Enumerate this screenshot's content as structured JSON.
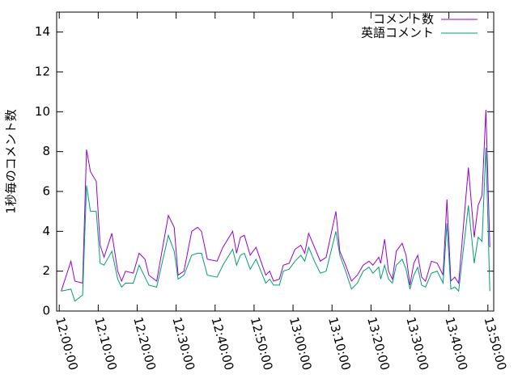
{
  "chart_data": {
    "type": "line",
    "ylabel": "1秒毎のコメント数",
    "x": [
      "12:00:30",
      "12:03:00",
      "12:04:00",
      "12:06:00",
      "12:07:00",
      "12:08:00",
      "12:09:30",
      "12:10:30",
      "12:11:30",
      "12:13:30",
      "12:15:00",
      "12:16:00",
      "12:17:00",
      "12:19:00",
      "12:20:30",
      "12:22:00",
      "12:23:00",
      "12:25:00",
      "12:28:00",
      "12:29:30",
      "12:30:30",
      "12:32:00",
      "12:34:00",
      "12:35:30",
      "12:36:30",
      "12:38:00",
      "12:40:30",
      "12:42:00",
      "12:44:30",
      "12:45:30",
      "12:46:30",
      "12:47:30",
      "12:49:00",
      "12:50:30",
      "12:53:00",
      "12:54:00",
      "12:55:00",
      "12:56:30",
      "12:57:30",
      "12:59:00",
      "13:00:30",
      "13:02:00",
      "13:03:00",
      "13:04:00",
      "13:05:30",
      "13:07:00",
      "13:08:30",
      "13:11:00",
      "13:12:00",
      "13:13:30",
      "13:15:00",
      "13:16:30",
      "13:18:00",
      "13:19:30",
      "13:20:30",
      "13:22:00",
      "13:22:30",
      "13:23:30",
      "13:24:30",
      "13:25:30",
      "13:26:30",
      "13:28:00",
      "13:29:00",
      "13:30:00",
      "13:31:00",
      "13:32:00",
      "13:33:00",
      "13:34:00",
      "13:35:30",
      "13:37:00",
      "13:38:30",
      "13:39:30",
      "13:40:30",
      "13:41:30",
      "13:42:30",
      "13:45:00",
      "13:46:30",
      "13:47:30",
      "13:48:30",
      "13:49:30",
      "13:50:30"
    ],
    "series": [
      {
        "name": "コメント数",
        "color": "#9400d3",
        "values": [
          1.0,
          2.5,
          1.5,
          1.4,
          8.1,
          7.0,
          6.5,
          3.3,
          2.7,
          3.9,
          2.0,
          1.5,
          2.0,
          1.9,
          2.9,
          2.6,
          1.8,
          1.5,
          4.8,
          4.2,
          1.8,
          2.0,
          4.0,
          4.2,
          4.0,
          2.6,
          2.5,
          3.2,
          4.0,
          2.9,
          3.7,
          3.8,
          2.8,
          3.2,
          1.8,
          2.0,
          1.5,
          1.6,
          2.3,
          2.4,
          3.1,
          3.3,
          2.9,
          3.9,
          3.2,
          2.5,
          2.7,
          5.0,
          3.0,
          2.3,
          1.5,
          1.8,
          2.3,
          2.5,
          2.3,
          2.7,
          2.4,
          3.6,
          2.0,
          1.6,
          3.0,
          3.4,
          2.8,
          1.3,
          2.4,
          2.8,
          1.7,
          1.5,
          2.5,
          2.4,
          1.8,
          5.6,
          1.5,
          1.7,
          1.4,
          7.2,
          3.7,
          5.3,
          5.8,
          10.1,
          3.2
        ]
      },
      {
        "name": "英語コメント",
        "color": "#009e73",
        "values": [
          1.0,
          1.1,
          0.5,
          0.8,
          6.3,
          5.0,
          5.0,
          2.4,
          2.3,
          3.0,
          1.6,
          1.2,
          1.4,
          1.4,
          2.3,
          1.7,
          1.3,
          1.2,
          3.8,
          3.0,
          1.6,
          1.8,
          2.8,
          2.9,
          2.9,
          1.8,
          1.7,
          2.3,
          3.1,
          2.3,
          2.8,
          2.9,
          2.1,
          2.6,
          1.4,
          1.6,
          1.3,
          1.3,
          2.0,
          2.1,
          2.5,
          2.8,
          2.5,
          3.2,
          2.5,
          1.9,
          2.0,
          4.0,
          2.8,
          2.0,
          1.1,
          1.4,
          2.0,
          2.2,
          1.9,
          2.2,
          1.6,
          2.3,
          1.6,
          1.4,
          2.3,
          2.6,
          2.1,
          1.1,
          1.8,
          2.2,
          1.3,
          1.2,
          1.9,
          2.0,
          1.4,
          4.4,
          1.1,
          1.2,
          1.0,
          5.3,
          2.4,
          3.7,
          3.5,
          8.2,
          1.0
        ]
      }
    ],
    "xlim": [
      "11:59:20",
      "13:51:30"
    ],
    "xticks": [
      "12:00:00",
      "12:10:00",
      "12:20:00",
      "12:30:00",
      "12:40:00",
      "12:50:00",
      "13:00:00",
      "13:10:00",
      "13:20:00",
      "13:30:00",
      "13:40:00",
      "13:50:00"
    ],
    "ylim": [
      0,
      15
    ],
    "yticks": [
      0,
      2,
      4,
      6,
      8,
      10,
      12,
      14
    ],
    "legend": "top-right"
  }
}
